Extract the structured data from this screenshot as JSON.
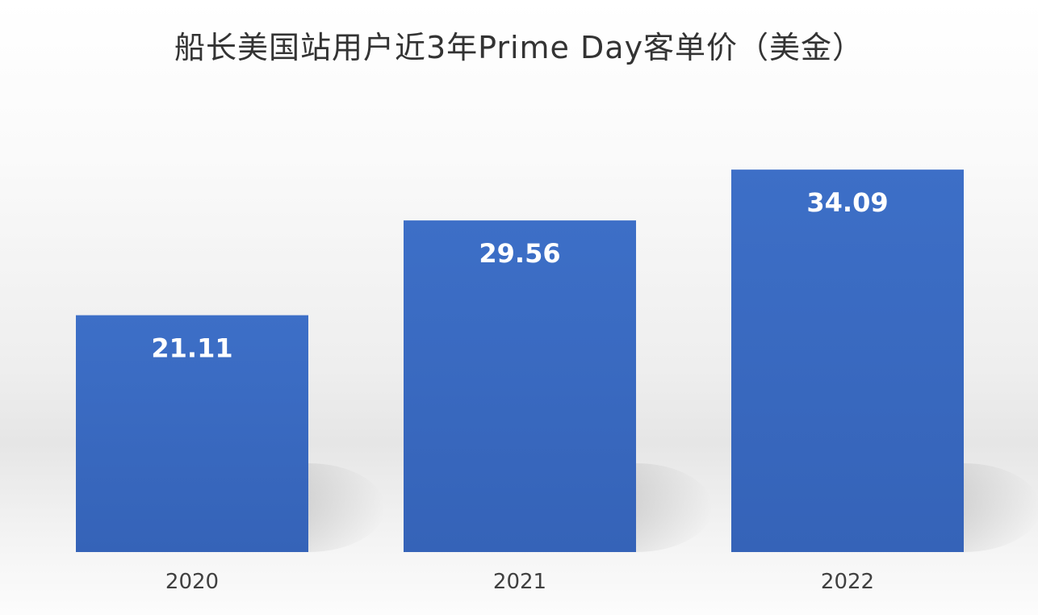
{
  "chart_data": {
    "type": "bar",
    "title": "船长美国站用户近3年Prime Day客单价（美金）",
    "categories": [
      "2020",
      "2021",
      "2022"
    ],
    "values": [
      21.11,
      29.56,
      34.09
    ],
    "value_labels": [
      "21.11",
      "29.56",
      "34.09"
    ],
    "xlabel": "",
    "ylabel": "",
    "ylim": [
      0,
      40
    ],
    "grid": false,
    "legend": "none",
    "bar_color": "#3B6CC4",
    "label_color": "#FFFFFF"
  }
}
